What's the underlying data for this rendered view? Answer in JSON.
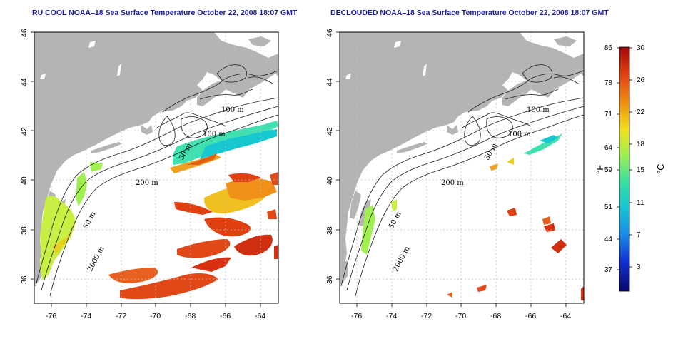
{
  "left_panel": {
    "title": "RU COOL NOAA–18 Sea Surface Temperature October 22, 2008 18:07 GMT"
  },
  "right_panel": {
    "title": "DECLOUDED NOAA–18 Sea Surface Temperature October 22, 2008 18:07 GMT"
  },
  "axes": {
    "lon_range": [
      -77,
      -63
    ],
    "lat_range": [
      35,
      46
    ],
    "x_ticks": [
      "-76",
      "-74",
      "-72",
      "-70",
      "-68",
      "-66",
      "-64"
    ],
    "y_ticks": [
      "36",
      "38",
      "40",
      "42",
      "44",
      "46"
    ],
    "grid": true
  },
  "contour_labels": {
    "c100a": "100 m",
    "c100b": "100 m",
    "c50a": "50 m",
    "c200": "200 m",
    "c50b": "50 m",
    "c2000": "2000 m"
  },
  "colorbar": {
    "f_unit": "°F",
    "c_unit": "°C",
    "f_ticks": [
      "86",
      "78",
      "71",
      "64",
      "59",
      "51",
      "44",
      "37"
    ],
    "c_ticks": [
      "30",
      "26",
      "22",
      "18",
      "15",
      "11",
      "7",
      "3"
    ],
    "colors": [
      "#08086e",
      "#1030d0",
      "#1890e8",
      "#18c8d0",
      "#38e0a0",
      "#a0f050",
      "#f0e020",
      "#f09010",
      "#e04010",
      "#a00808"
    ]
  },
  "colors": {
    "land": "#b4b4b4",
    "water": "#ffffff",
    "grid": "#bfbfbf",
    "title": "#1a1aa0"
  }
}
